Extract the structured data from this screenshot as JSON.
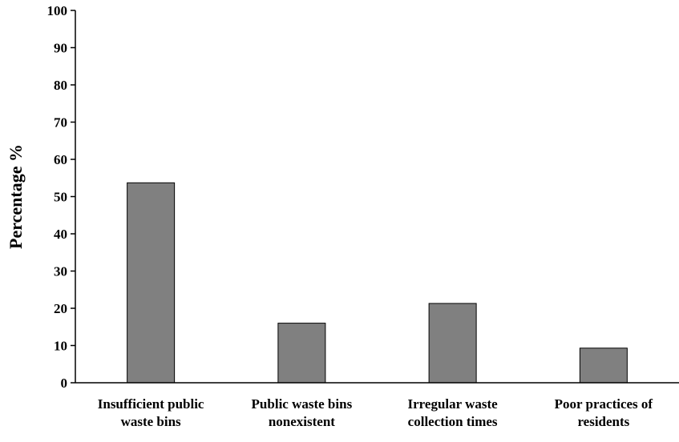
{
  "chart_data": {
    "type": "bar",
    "title": "",
    "xlabel": "",
    "ylabel": "Percentage %",
    "ylim": [
      0,
      100
    ],
    "yticks": [
      0,
      10,
      20,
      30,
      40,
      50,
      60,
      70,
      80,
      90,
      100
    ],
    "grid": false,
    "legend": "none",
    "categories": [
      [
        "Insufficient public",
        "waste bins"
      ],
      [
        "Public waste bins",
        "nonexistent"
      ],
      [
        "Irregular waste",
        "collection times"
      ],
      [
        "Poor practices of",
        "residents"
      ]
    ],
    "values": [
      53.7,
      16.0,
      21.3,
      9.3
    ],
    "colors": {
      "bar_fill": "#808080",
      "bar_stroke": "#000000",
      "axis": "#000000"
    }
  }
}
